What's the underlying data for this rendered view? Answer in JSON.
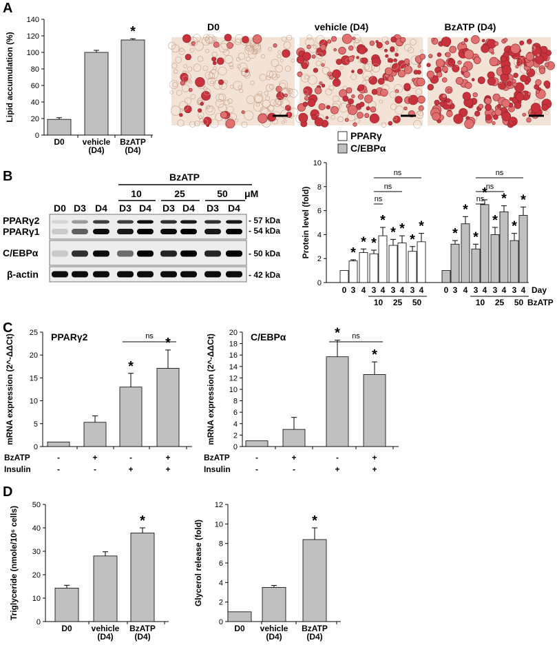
{
  "panels": {
    "A": "A",
    "B": "B",
    "C": "C",
    "D": "D"
  },
  "micrographs": [
    {
      "label": "D0",
      "density": 0.15
    },
    {
      "label": "vehicle (D4)",
      "density": 0.7
    },
    {
      "label": "BzATP (D4)",
      "density": 0.9
    }
  ],
  "blot": {
    "treatment": "BzATP",
    "doses": [
      "10",
      "25",
      "50"
    ],
    "unit": "μM",
    "lanes": [
      "D0",
      "D3",
      "D4",
      "D3",
      "D4",
      "D3",
      "D4",
      "D3",
      "D4"
    ],
    "rows": [
      {
        "labels": [
          "PPARγ2",
          "PPARγ1"
        ],
        "kda": [
          "- 57 kDa",
          "- 54 kDa"
        ]
      },
      {
        "labels": [
          "C/EBPα"
        ],
        "kda": [
          "- 50 kDa"
        ]
      },
      {
        "labels": [
          "β-actin"
        ],
        "kda": [
          "- 42 kDa"
        ]
      }
    ]
  },
  "colors": {
    "gray": "#c0c0c0",
    "white": "#ffffff",
    "ink": "#000000"
  },
  "chart_data": [
    {
      "id": "A",
      "type": "bar",
      "ylabel": "Lipid accumulation (%)",
      "ylim": [
        0,
        140
      ],
      "yticks": [
        0,
        20,
        40,
        60,
        80,
        100,
        120,
        140
      ],
      "categories": [
        "D0",
        "vehicle (D4)",
        "BzATP (D4)"
      ],
      "values": [
        19,
        100,
        115
      ],
      "errors": [
        2,
        2.5,
        1.5
      ],
      "significance": [
        "",
        "",
        "*"
      ]
    },
    {
      "id": "B",
      "type": "bar",
      "ylabel": "Protein level (fold)",
      "ylim": [
        0,
        10
      ],
      "yticks": [
        0,
        2,
        4,
        6,
        8,
        10
      ],
      "legend": [
        "PPARγ",
        "C/EBPα"
      ],
      "categories": [
        "0",
        "3",
        "4",
        "3",
        "4",
        "3",
        "4",
        "3",
        "4"
      ],
      "dose_labels": [
        "10",
        "25",
        "50"
      ],
      "x_suffix": [
        "Day",
        "BzATP"
      ],
      "series": [
        {
          "name": "PPARγ",
          "values": [
            1,
            1.8,
            2.5,
            2.4,
            3.9,
            3.1,
            3.3,
            2.6,
            3.4
          ],
          "errors": [
            0,
            0.1,
            0.3,
            0.3,
            0.7,
            0.5,
            0.6,
            0.4,
            0.7
          ],
          "significance": [
            "",
            "*",
            "*",
            "*",
            "*",
            "*",
            "*",
            "*",
            "*"
          ]
        },
        {
          "name": "C/EBPα",
          "values": [
            1,
            3.2,
            4.9,
            2.8,
            6.5,
            4.0,
            5.9,
            3.5,
            5.6
          ],
          "errors": [
            0,
            0.3,
            0.6,
            0.4,
            0.4,
            0.6,
            0.5,
            0.6,
            0.7
          ],
          "significance": [
            "",
            "*",
            "*",
            "*",
            "*",
            "*",
            "*",
            "*",
            "*"
          ]
        }
      ],
      "ns_brackets": [
        "ns",
        "ns",
        "ns",
        "ns",
        "ns",
        "ns"
      ]
    },
    {
      "id": "C1",
      "type": "bar",
      "title": "PPARγ2",
      "ylabel": "mRNA expression (2^-ΔΔCt)",
      "ylim": [
        0,
        25
      ],
      "yticks": [
        0,
        5,
        10,
        15,
        20,
        25
      ],
      "rows": [
        {
          "name": "BzATP",
          "values": [
            "-",
            "+",
            "-",
            "+"
          ]
        },
        {
          "name": "Insulin",
          "values": [
            "-",
            "-",
            "+",
            "+"
          ]
        }
      ],
      "values": [
        1,
        5.3,
        13,
        17.1
      ],
      "errors": [
        0,
        1.4,
        3,
        4
      ],
      "significance": [
        "",
        "",
        "*",
        "*"
      ],
      "bracket": "ns"
    },
    {
      "id": "C2",
      "type": "bar",
      "title": "C/EBPα",
      "ylabel": "mRNA expression (2^-ΔΔCt)",
      "ylim": [
        0,
        20
      ],
      "yticks": [
        0,
        2,
        4,
        6,
        8,
        10,
        12,
        14,
        16,
        18,
        20
      ],
      "rows": [
        {
          "name": "BzATP",
          "values": [
            "-",
            "+",
            "-",
            "+"
          ]
        },
        {
          "name": "Insulin",
          "values": [
            "-",
            "-",
            "+",
            "+"
          ]
        }
      ],
      "values": [
        1,
        3,
        15.7,
        12.6
      ],
      "errors": [
        0,
        2.1,
        2.9,
        2.2
      ],
      "significance": [
        "",
        "",
        "*",
        "*"
      ],
      "bracket": "ns"
    },
    {
      "id": "D1",
      "type": "bar",
      "ylabel": "Triglyceride (nmole/10⁶ cells)",
      "ylim": [
        0,
        50
      ],
      "yticks": [
        0,
        10,
        20,
        30,
        40,
        50
      ],
      "categories": [
        "D0",
        "vehicle (D4)",
        "BzATP (D4)"
      ],
      "values": [
        14.3,
        28,
        37.8
      ],
      "errors": [
        1.2,
        1.8,
        2.2
      ],
      "significance": [
        "",
        "",
        "*"
      ]
    },
    {
      "id": "D2",
      "type": "bar",
      "ylabel": "Glycerol release (fold)",
      "ylim": [
        0,
        12
      ],
      "yticks": [
        0,
        2,
        4,
        6,
        8,
        10,
        12
      ],
      "categories": [
        "D0",
        "vehicle (D4)",
        "BzATP (D4)"
      ],
      "values": [
        1,
        3.5,
        8.4
      ],
      "errors": [
        0,
        0.2,
        1.2
      ],
      "significance": [
        "",
        "",
        "*"
      ]
    }
  ]
}
